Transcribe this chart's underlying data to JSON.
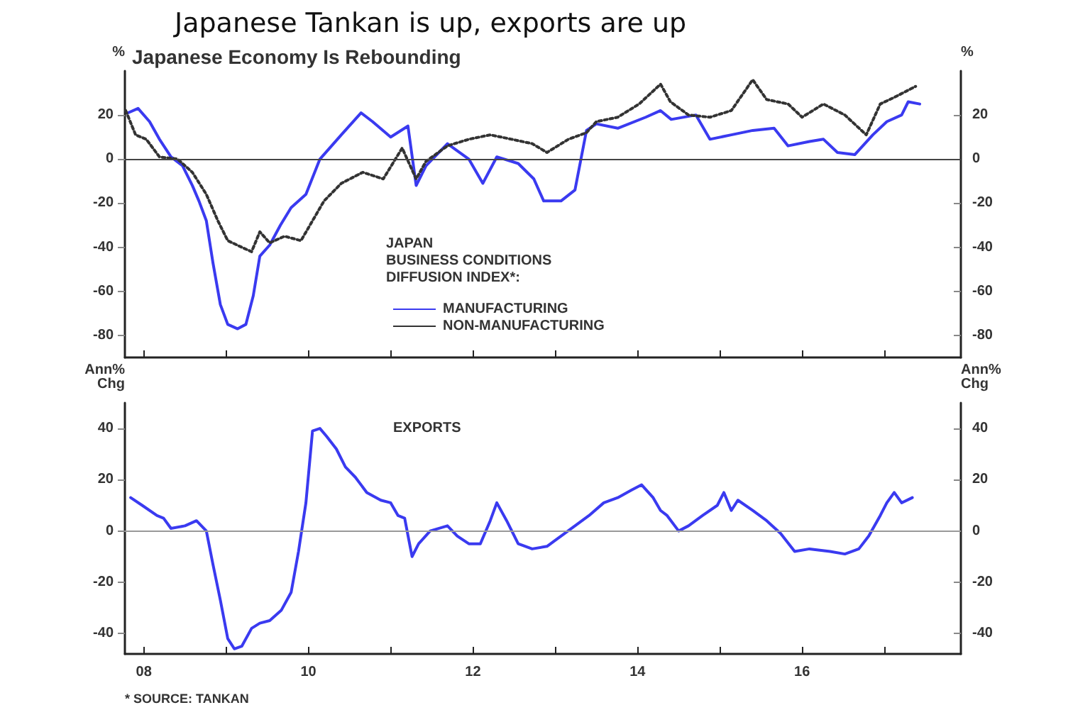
{
  "chart_data": [
    {
      "type": "line",
      "title": "Japanese Tankan is up, exports are up",
      "subtitle": "Japanese Economy Is Rebounding",
      "ylabel": "%",
      "y2label": "%",
      "legend_title": "JAPAN\nBUSINESS CONDITIONS\nDIFFUSION INDEX*:",
      "legend": "center",
      "marker": "none",
      "grid": false,
      "tick_labels": "y",
      "xlim": [
        2007.77,
        2017.93
      ],
      "xticks": [
        {
          "value": 2008,
          "label": null
        },
        {
          "value": 2009,
          "label": null
        },
        {
          "value": 2010,
          "label": null
        },
        {
          "value": 2011,
          "label": null
        },
        {
          "value": 2012,
          "label": null
        },
        {
          "value": 2013,
          "label": null
        },
        {
          "value": 2014,
          "label": null
        },
        {
          "value": 2015,
          "label": null
        },
        {
          "value": 2016,
          "label": null
        },
        {
          "value": 2017,
          "label": null
        }
      ],
      "ylim": [
        -90,
        40
      ],
      "yticks": [
        -80,
        -60,
        -40,
        -20,
        0,
        20
      ],
      "y2lim": [
        -90,
        40
      ],
      "y2ticks": [
        -80,
        -60,
        -40,
        -20,
        0,
        20
      ],
      "ref_lines": [
        {
          "axis": "y",
          "value": 0,
          "color": "#444444"
        }
      ],
      "series": [
        {
          "name": "MANUFACTURING",
          "color": "#3a3af0",
          "line_style": "solid",
          "x": [
            2007.81,
            2007.93,
            2008.07,
            2008.19,
            2008.33,
            2008.47,
            2008.59,
            2008.67,
            2008.76,
            2008.84,
            2008.93,
            2009.02,
            2009.14,
            2009.24,
            2009.33,
            2009.41,
            2009.53,
            2009.66,
            2009.79,
            2009.97,
            2010.14,
            2010.4,
            2010.64,
            2010.78,
            2011.0,
            2011.21,
            2011.31,
            2011.43,
            2011.69,
            2011.95,
            2012.12,
            2012.29,
            2012.55,
            2012.74,
            2012.86,
            2013.07,
            2013.24,
            2013.38,
            2013.5,
            2013.76,
            2014.1,
            2014.28,
            2014.41,
            2014.71,
            2014.88,
            2015.14,
            2015.4,
            2015.66,
            2015.83,
            2016.09,
            2016.26,
            2016.43,
            2016.64,
            2016.86,
            2017.03,
            2017.21,
            2017.29,
            2017.43
          ],
          "values": [
            21,
            23,
            17,
            9,
            1,
            -3,
            -12,
            -19,
            -28,
            -47,
            -66,
            -75,
            -77,
            -75,
            -62,
            -44,
            -39,
            -30,
            -22,
            -16,
            0,
            11,
            21,
            17,
            10,
            15,
            -12,
            -3,
            7,
            0,
            -11,
            1,
            -2,
            -9,
            -19,
            -19,
            -14,
            13,
            16,
            14,
            19,
            22,
            18,
            20,
            9,
            11,
            13,
            14,
            6,
            8,
            9,
            3,
            2,
            11,
            17,
            20,
            26,
            25
          ]
        },
        {
          "name": "NON-MANUFACTURING",
          "color": "#333333",
          "line_style": "dotted",
          "x": [
            2007.78,
            2007.9,
            2008.03,
            2008.19,
            2008.41,
            2008.59,
            2008.76,
            2008.9,
            2009.02,
            2009.19,
            2009.31,
            2009.41,
            2009.53,
            2009.71,
            2009.91,
            2010.05,
            2010.19,
            2010.4,
            2010.66,
            2010.91,
            2011.14,
            2011.31,
            2011.43,
            2011.69,
            2011.95,
            2012.21,
            2012.47,
            2012.72,
            2012.9,
            2013.16,
            2013.38,
            2013.5,
            2013.76,
            2014.02,
            2014.28,
            2014.4,
            2014.62,
            2014.88,
            2015.14,
            2015.4,
            2015.57,
            2015.83,
            2016.0,
            2016.26,
            2016.52,
            2016.78,
            2016.95,
            2017.12,
            2017.38
          ],
          "values": [
            22,
            11,
            9,
            1,
            0,
            -6,
            -16,
            -28,
            -37,
            -40,
            -42,
            -33,
            -38,
            -35,
            -37,
            -28,
            -19,
            -11,
            -6,
            -9,
            5,
            -9,
            -1,
            6,
            9,
            11,
            9,
            7,
            3,
            9,
            12,
            17,
            19,
            25,
            34,
            26,
            20,
            19,
            22,
            36,
            27,
            25,
            19,
            25,
            20,
            11,
            25,
            28,
            33
          ]
        }
      ]
    },
    {
      "type": "line",
      "title": "EXPORTS",
      "ylabel": "Ann%\nChg",
      "y2label": "Ann%\nChg",
      "marker": "none",
      "grid": false,
      "annotations": [
        "* SOURCE: TANKAN"
      ],
      "xlim": [
        2007.77,
        2017.93
      ],
      "xticks": [
        {
          "value": 2008,
          "label": "08"
        },
        {
          "value": 2009,
          "label": null
        },
        {
          "value": 2010,
          "label": "10"
        },
        {
          "value": 2011,
          "label": null
        },
        {
          "value": 2012,
          "label": "12"
        },
        {
          "value": 2013,
          "label": null
        },
        {
          "value": 2014,
          "label": "14"
        },
        {
          "value": 2015,
          "label": null
        },
        {
          "value": 2016,
          "label": "16"
        },
        {
          "value": 2017,
          "label": null
        }
      ],
      "ylim": [
        -48,
        50
      ],
      "yticks": [
        -40,
        -20,
        0,
        20,
        40
      ],
      "y2lim": [
        -48,
        50
      ],
      "y2ticks": [
        -40,
        -20,
        0,
        20,
        40
      ],
      "ref_lines": [
        {
          "axis": "y",
          "value": 0,
          "color": "#999999"
        }
      ],
      "series": [
        {
          "color": "#3a3af0",
          "line_style": "solid",
          "x": [
            2007.84,
            2007.98,
            2008.16,
            2008.24,
            2008.33,
            2008.5,
            2008.64,
            2008.76,
            2008.84,
            2008.93,
            2009.02,
            2009.1,
            2009.19,
            2009.31,
            2009.41,
            2009.53,
            2009.67,
            2009.79,
            2009.88,
            2009.97,
            2010.05,
            2010.14,
            2010.22,
            2010.34,
            2010.45,
            2010.57,
            2010.71,
            2010.88,
            2011.0,
            2011.09,
            2011.17,
            2011.26,
            2011.34,
            2011.48,
            2011.69,
            2011.81,
            2011.95,
            2012.09,
            2012.21,
            2012.29,
            2012.41,
            2012.55,
            2012.72,
            2012.9,
            2013.07,
            2013.24,
            2013.41,
            2013.59,
            2013.76,
            2013.93,
            2014.05,
            2014.19,
            2014.28,
            2014.36,
            2014.5,
            2014.62,
            2014.79,
            2014.97,
            2015.05,
            2015.14,
            2015.22,
            2015.4,
            2015.57,
            2015.74,
            2015.91,
            2016.09,
            2016.34,
            2016.52,
            2016.69,
            2016.81,
            2016.95,
            2017.03,
            2017.12,
            2017.21,
            2017.34
          ],
          "values": [
            13,
            10,
            6,
            5,
            1,
            2,
            4,
            0,
            -13,
            -27,
            -42,
            -46,
            -45,
            -38,
            -36,
            -35,
            -31,
            -24,
            -8,
            11,
            39,
            40,
            37,
            32,
            25,
            21,
            15,
            12,
            11,
            6,
            5,
            -10,
            -5,
            0,
            2,
            -2,
            -5,
            -5,
            4,
            11,
            4,
            -5,
            -7,
            -6,
            -2,
            2,
            6,
            11,
            13,
            16,
            18,
            13,
            8,
            6,
            0,
            2,
            6,
            10,
            15,
            8,
            12,
            8,
            4,
            -1,
            -8,
            -7,
            -8,
            -9,
            -7,
            -2,
            6,
            11,
            15,
            11,
            13
          ]
        }
      ]
    }
  ]
}
